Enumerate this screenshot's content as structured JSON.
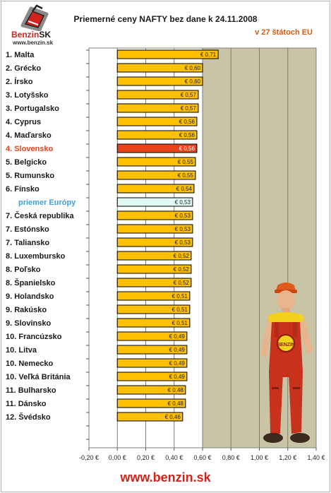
{
  "logo": {
    "brand_main": "Benzin",
    "brand_sk": "SK",
    "url": "www.benzin.sk",
    "icon": "fuel-can-logo-icon"
  },
  "header": {
    "title": "Priemerné ceny NAFTY bez dane k 24.11.2008",
    "subtitle": "v 27 štátoch EU"
  },
  "footer": {
    "url": "www.benzin.sk"
  },
  "colors": {
    "bar": "#ffc000",
    "bar_highlight": "#e8431a",
    "bar_average": "#dffaf5",
    "label_highlight": "#e8431a",
    "label_average": "#3f9fd8",
    "plot_bg": "#c9c4a6",
    "footer": "#d0241c"
  },
  "chart_data": {
    "type": "bar",
    "orientation": "horizontal",
    "title": "Priemerné ceny NAFTY bez dane k 24.11.2008",
    "subtitle": "v 27 štátoch EU",
    "categories": [
      "1. Malta",
      "2. Grécko",
      "2. Írsko",
      "3. Lotyšsko",
      "3. Portugalsko",
      "4. Cyprus",
      "4. Maďarsko",
      "4. Slovensko",
      "5. Belgicko",
      "5. Rumunsko",
      "6. Fínsko",
      "priemer Európy",
      "7. Česká republika",
      "7. Estónsko",
      "7. Taliansko",
      "8. Luxembursko",
      "8. Poľsko",
      "8. Španielsko",
      "9. Holandsko",
      "9. Rakúsko",
      "9. Slovinsko",
      "10. Francúzsko",
      "10. Litva",
      "10. Nemecko",
      "10. Veľká Británia",
      "11. Bulharsko",
      "11. Dánsko",
      "12. Švédsko"
    ],
    "values": [
      0.71,
      0.6,
      0.6,
      0.57,
      0.57,
      0.56,
      0.56,
      0.56,
      0.55,
      0.55,
      0.54,
      0.53,
      0.53,
      0.53,
      0.53,
      0.52,
      0.52,
      0.52,
      0.51,
      0.51,
      0.51,
      0.49,
      0.49,
      0.49,
      0.49,
      0.48,
      0.48,
      0.46
    ],
    "data_labels": [
      "€ 0,71",
      "€ 0,60",
      "€ 0,60",
      "€ 0,57",
      "€ 0,57",
      "€ 0,56",
      "€ 0,56",
      "€ 0,56",
      "€ 0,55",
      "€ 0,55",
      "€ 0,54",
      "€ 0,53",
      "€ 0,53",
      "€ 0,53",
      "€ 0,53",
      "€ 0,52",
      "€ 0,52",
      "€ 0,52",
      "€ 0,51",
      "€ 0,51",
      "€ 0,51",
      "€ 0,49",
      "€ 0,49",
      "€ 0,49",
      "€ 0,49",
      "€ 0,48",
      "€ 0,48",
      "€ 0,46"
    ],
    "highlight_index": 7,
    "average_index": 11,
    "xlim": [
      -0.2,
      1.4
    ],
    "xticks": [
      -0.2,
      0.0,
      0.2,
      0.4,
      0.6,
      0.8,
      1.0,
      1.2,
      1.4
    ],
    "xtick_labels": [
      "-0,20 €",
      "0,00 €",
      "0,20 €",
      "0,40 €",
      "0,60 €",
      "0,80 €",
      "1,00 €",
      "1,20 €",
      "1,40 €"
    ],
    "grid": true,
    "legend": "none"
  }
}
